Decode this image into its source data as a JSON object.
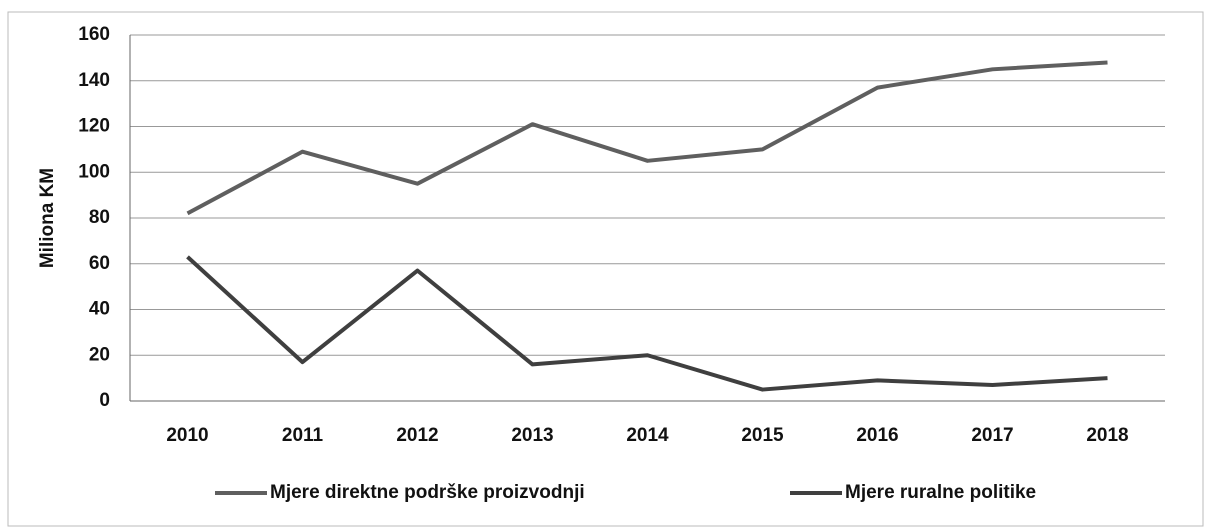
{
  "chart_data": {
    "type": "line",
    "y_label": "Miliona KM",
    "categories": [
      "2010",
      "2011",
      "2012",
      "2013",
      "2014",
      "2015",
      "2016",
      "2017",
      "2018"
    ],
    "series": [
      {
        "name": "Mjere direktne podrške proizvodnji",
        "color": "#5f5f5f",
        "values": [
          82,
          109,
          95,
          121,
          105,
          110,
          137,
          145,
          148
        ]
      },
      {
        "name": "Mjere ruralne politike",
        "color": "#3f3f3f",
        "values": [
          63,
          17,
          57,
          16,
          20,
          5,
          9,
          7,
          10
        ]
      }
    ],
    "ylim": [
      0,
      160
    ],
    "yticks": [
      0,
      20,
      40,
      60,
      80,
      100,
      120,
      140,
      160
    ],
    "grid": true,
    "legend": "bottom"
  }
}
